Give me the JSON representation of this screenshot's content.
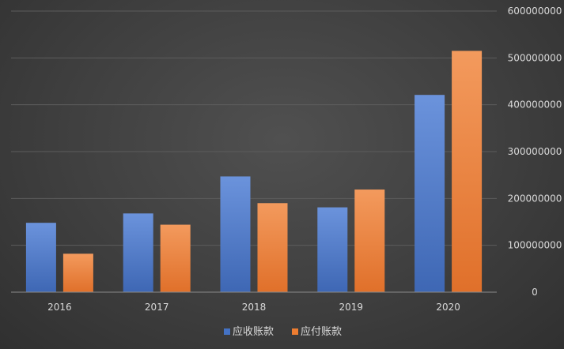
{
  "chart_data": {
    "type": "bar",
    "title": "",
    "xlabel": "",
    "ylabel": "",
    "categories": [
      "2016",
      "2017",
      "2018",
      "2019",
      "2020"
    ],
    "series": [
      {
        "name": "应收账款",
        "color": "#4472c4",
        "values": [
          148000000,
          168000000,
          247000000,
          181000000,
          421000000
        ]
      },
      {
        "name": "应付账款",
        "color": "#ed7d31",
        "values": [
          82000000,
          144000000,
          190000000,
          219000000,
          515000000
        ]
      }
    ],
    "ylim": [
      0,
      600000000
    ],
    "yticks": [
      "0",
      "100000000",
      "200000000",
      "300000000",
      "400000000",
      "500000000",
      "600000000"
    ],
    "y_axis_position": "right",
    "grid": true,
    "legend_position": "bottom"
  }
}
